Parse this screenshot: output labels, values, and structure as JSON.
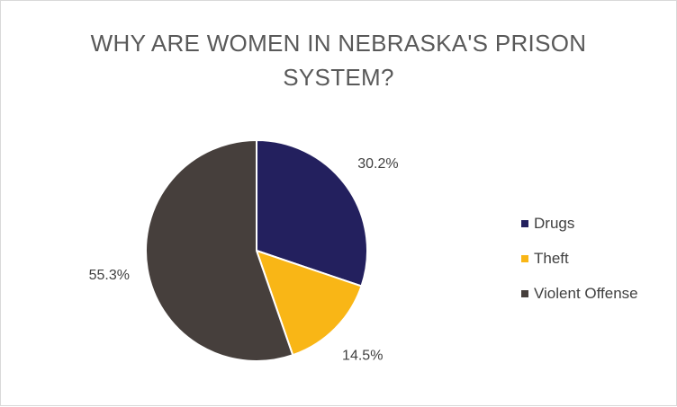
{
  "chart_data": {
    "type": "pie",
    "title": "WHY ARE WOMEN IN NEBRASKA'S PRISON SYSTEM?",
    "categories": [
      "Drugs",
      "Theft",
      "Violent Offense"
    ],
    "values": [
      30.2,
      14.5,
      55.3
    ],
    "value_labels": [
      "30.2%",
      "14.5%",
      "55.3%"
    ],
    "colors": [
      "#23205e",
      "#f9b616",
      "#463f3c"
    ],
    "legend_position": "right",
    "start_angle": "12 o'clock, clockwise"
  }
}
